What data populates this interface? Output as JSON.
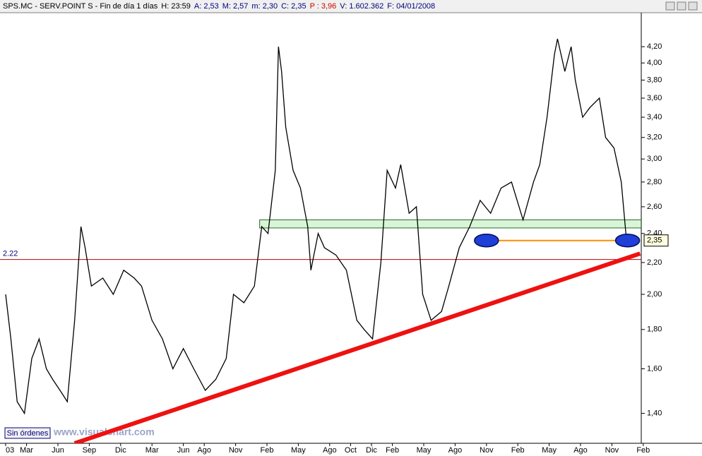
{
  "chart_data": {
    "type": "line",
    "header": [
      {
        "text": "SPS.MC - SERV.POINT S - Fin de día 1 días",
        "color": "#000000"
      },
      {
        "text": "H: 23:59",
        "color": "#000000"
      },
      {
        "text": "A: 2,53",
        "color": "#000080"
      },
      {
        "text": "M: 2,57",
        "color": "#000080"
      },
      {
        "text": "m: 2,30",
        "color": "#000080"
      },
      {
        "text": "C: 2,35",
        "color": "#000080"
      },
      {
        "text": "P : 3,96",
        "color": "#d00000"
      },
      {
        "text": "V: 1.602.362",
        "color": "#000080"
      },
      {
        "text": "F: 04/01/2008",
        "color": "#000080"
      }
    ],
    "x": [
      0,
      0.5,
      1.1,
      1.8,
      2.5,
      3.2,
      3.9,
      4.5,
      5.2,
      5.9,
      6.6,
      7.2,
      7.6,
      8.2,
      9.3,
      10.3,
      11.3,
      12.3,
      13.0,
      14.0,
      15.0,
      16.0,
      17.0,
      18.0,
      19.1,
      20.1,
      21.1,
      21.8,
      22.8,
      23.8,
      24.5,
      25.1,
      25.8,
      26.1,
      26.4,
      26.8,
      27.5,
      28.2,
      28.9,
      29.2,
      29.9,
      30.5,
      31.6,
      32.6,
      33.6,
      34.3,
      35.1,
      35.9,
      36.5,
      37.3,
      37.8,
      38.6,
      39.3,
      39.9,
      40.7,
      41.7,
      42.4,
      43.4,
      44.4,
      45.4,
      46.4,
      47.4,
      48.4,
      49.5,
      50.5,
      51.1,
      51.8,
      52.5,
      52.8,
      53.5,
      54.1,
      54.5,
      55.2,
      55.9,
      56.8,
      57.4,
      58.2,
      58.9,
      59.4
    ],
    "series": [
      {
        "color": "#000000",
        "values": [
          2.0,
          1.75,
          1.45,
          1.4,
          1.65,
          1.75,
          1.6,
          1.55,
          1.5,
          1.45,
          1.85,
          2.45,
          2.3,
          2.05,
          2.1,
          2.0,
          2.15,
          2.1,
          2.05,
          1.85,
          1.75,
          1.6,
          1.7,
          1.6,
          1.5,
          1.55,
          1.65,
          2.0,
          1.95,
          2.05,
          2.45,
          2.4,
          2.9,
          4.2,
          3.9,
          3.3,
          2.9,
          2.75,
          2.45,
          2.15,
          2.4,
          2.3,
          2.25,
          2.15,
          1.85,
          1.8,
          1.75,
          2.2,
          2.9,
          2.75,
          2.95,
          2.55,
          2.6,
          2.0,
          1.85,
          1.9,
          2.05,
          2.3,
          2.45,
          2.65,
          2.55,
          2.75,
          2.8,
          2.5,
          2.8,
          2.95,
          3.4,
          4.1,
          4.3,
          3.9,
          4.2,
          3.8,
          3.4,
          3.5,
          3.6,
          3.2,
          3.1,
          2.8,
          2.35
        ]
      }
    ],
    "log_scale": true,
    "xlim": [
      -0.54,
      60.81
    ],
    "xticks": [
      {
        "value": 0,
        "label": "03"
      },
      {
        "value": 2,
        "label": "Mar"
      },
      {
        "value": 5,
        "label": "Jun"
      },
      {
        "value": 8,
        "label": "Sep"
      },
      {
        "value": 11,
        "label": "Dic"
      },
      {
        "value": 14,
        "label": "Mar"
      },
      {
        "value": 17,
        "label": "Jun"
      },
      {
        "value": 19,
        "label": "Ago"
      },
      {
        "value": 22,
        "label": "Nov"
      },
      {
        "value": 25,
        "label": "Feb"
      },
      {
        "value": 28,
        "label": "May"
      },
      {
        "value": 31,
        "label": "Ago"
      },
      {
        "value": 33,
        "label": "Oct"
      },
      {
        "value": 35,
        "label": "Dic"
      },
      {
        "value": 37,
        "label": "Feb"
      },
      {
        "value": 40,
        "label": "May"
      },
      {
        "value": 43,
        "label": "Ago"
      },
      {
        "value": 46,
        "label": "Nov"
      },
      {
        "value": 49,
        "label": "Feb"
      },
      {
        "value": 52,
        "label": "May"
      },
      {
        "value": 55,
        "label": "Ago"
      },
      {
        "value": 58,
        "label": "Nov"
      },
      {
        "value": 61,
        "label": "Feb"
      }
    ],
    "ylim": [
      1.28,
      4.65
    ],
    "yticks": [
      {
        "value": 1.4,
        "label": "1,40"
      },
      {
        "value": 1.6,
        "label": "1,60"
      },
      {
        "value": 1.8,
        "label": "1,80"
      },
      {
        "value": 2.0,
        "label": "2,00"
      },
      {
        "value": 2.2,
        "label": "2,20"
      },
      {
        "value": 2.4,
        "label": "2,40"
      },
      {
        "value": 2.6,
        "label": "2,60"
      },
      {
        "value": 2.8,
        "label": "2,80"
      },
      {
        "value": 3.0,
        "label": "3,00"
      },
      {
        "value": 3.2,
        "label": "3,20"
      },
      {
        "value": 3.4,
        "label": "3,40"
      },
      {
        "value": 3.6,
        "label": "3,60"
      },
      {
        "value": 3.8,
        "label": "3,80"
      },
      {
        "value": 4.0,
        "label": "4,00"
      },
      {
        "value": 4.2,
        "label": "4,20"
      }
    ],
    "last_value": {
      "value": 2.35,
      "label": "2,35"
    },
    "reference_line": {
      "value": 2.22,
      "color": "#c00000"
    },
    "band": {
      "x": [
        24.3,
        60.8
      ],
      "y": [
        2.44,
        2.5
      ],
      "color": "#d8f5d8"
    },
    "support_line": {
      "x": [
        46,
        59.5
      ],
      "value": 2.35,
      "color": "#ff8c00"
    },
    "markers": {
      "x": [
        46,
        59.5
      ],
      "values": [
        2.35,
        2.35
      ],
      "color": "#1f3fd8"
    },
    "trend_line": {
      "x": [
        6.6,
        60.7
      ],
      "values": [
        1.28,
        2.26
      ],
      "color": "#ee1111"
    },
    "button": "Sin órdenes",
    "watermark": "www.visualchart.com"
  }
}
